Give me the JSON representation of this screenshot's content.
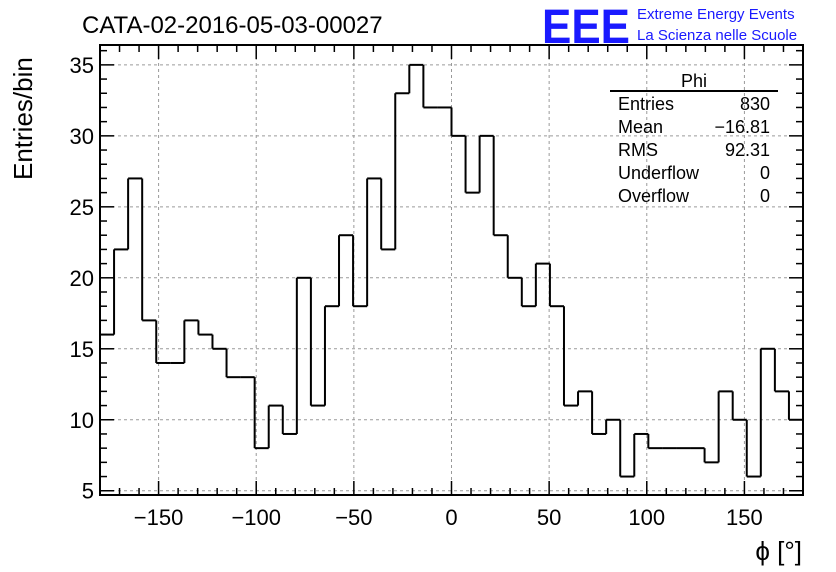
{
  "header": {
    "title": "CATA-02-2016-05-03-00027",
    "logo_text": "EEE",
    "logo_line1": "Extreme Energy Events",
    "logo_line2": "La Scienza nelle Scuole",
    "logo_color": "#1a1aff"
  },
  "stats_box": {
    "title": "Phi",
    "rows": [
      {
        "label": "Entries",
        "value": "830"
      },
      {
        "label": "Mean",
        "value": "−16.81"
      },
      {
        "label": "RMS",
        "value": "92.31"
      },
      {
        "label": "Underflow",
        "value": "0"
      },
      {
        "label": "Overflow",
        "value": "0"
      }
    ]
  },
  "chart_data": {
    "type": "histogram",
    "title": "CATA-02-2016-05-03-00027",
    "xlabel": "ϕ [°]",
    "ylabel": "Entries/bin",
    "xlim": [
      -180,
      180
    ],
    "ylim": [
      4.7,
      36.4
    ],
    "bin_width": 7.2,
    "x_ticks": [
      -150,
      -100,
      -50,
      0,
      50,
      100,
      150
    ],
    "x_tick_labels": [
      "−150",
      "−100",
      "−50",
      "0",
      "50",
      "100",
      "150"
    ],
    "y_ticks": [
      5,
      10,
      15,
      20,
      25,
      30,
      35
    ],
    "y_tick_labels": [
      "5",
      "10",
      "15",
      "20",
      "25",
      "30",
      "35"
    ],
    "values": [
      16,
      22,
      27,
      17,
      14,
      14,
      17,
      16,
      15,
      13,
      13,
      8,
      11,
      9,
      20,
      11,
      18,
      23,
      18,
      27,
      22,
      33,
      35,
      32,
      32,
      30,
      26,
      30,
      23,
      20,
      18,
      21,
      18,
      11,
      12,
      9,
      10,
      6,
      9,
      8,
      8,
      8,
      8,
      7,
      12,
      10,
      6,
      15,
      12,
      10
    ],
    "grid": true,
    "line_color": "#000000",
    "grid_color": "#9a9a9a"
  }
}
